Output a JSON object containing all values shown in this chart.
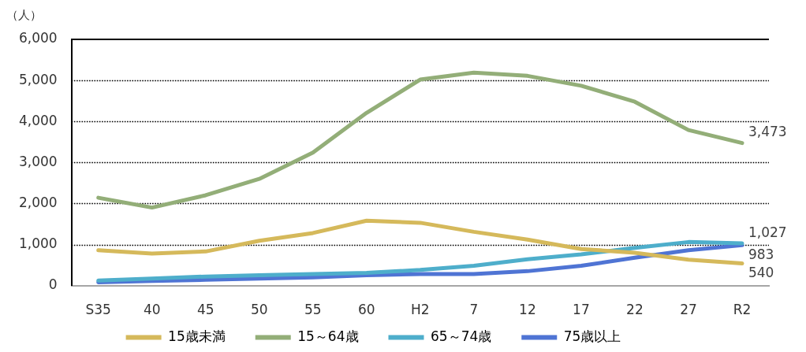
{
  "chart_data": {
    "type": "line",
    "ylabel": "（人）",
    "categories": [
      "S35",
      "40",
      "45",
      "50",
      "55",
      "60",
      "H2",
      "7",
      "12",
      "17",
      "22",
      "27",
      "R2"
    ],
    "series": [
      {
        "name": "15歳未満",
        "color": "#d5b95b",
        "values": [
          860,
          780,
          830,
          1090,
          1280,
          1580,
          1530,
          1310,
          1120,
          890,
          800,
          630,
          540
        ],
        "value_labels": [
          null,
          null,
          null,
          null,
          null,
          null,
          null,
          null,
          null,
          null,
          null,
          null,
          "540"
        ]
      },
      {
        "name": "15～64歳",
        "color": "#93ae78",
        "values": [
          2140,
          1900,
          2200,
          2600,
          3240,
          4210,
          5020,
          5190,
          5110,
          4870,
          4480,
          3790,
          3473
        ],
        "value_labels": [
          null,
          null,
          null,
          null,
          null,
          null,
          null,
          null,
          null,
          null,
          null,
          null,
          "3,473"
        ]
      },
      {
        "name": "65～74歳",
        "color": "#4eaecb",
        "values": [
          120,
          170,
          220,
          250,
          280,
          310,
          380,
          480,
          640,
          760,
          920,
          1060,
          1027
        ],
        "value_labels": [
          null,
          null,
          null,
          null,
          null,
          null,
          null,
          null,
          null,
          null,
          null,
          null,
          "1,027"
        ]
      },
      {
        "name": "75歳以上",
        "color": "#4f74d4",
        "values": [
          80,
          110,
          140,
          170,
          200,
          250,
          280,
          280,
          350,
          480,
          680,
          860,
          983
        ],
        "value_labels": [
          null,
          null,
          null,
          null,
          null,
          null,
          null,
          null,
          null,
          null,
          null,
          null,
          "983"
        ]
      }
    ],
    "ylim": [
      0,
      6000
    ],
    "yticks": [
      {
        "value": 0,
        "label": "0"
      },
      {
        "value": 1000,
        "label": "1,000"
      },
      {
        "value": 2000,
        "label": "2,000"
      },
      {
        "value": 3000,
        "label": "3,000"
      },
      {
        "value": 4000,
        "label": "4,000"
      },
      {
        "value": 5000,
        "label": "5,000"
      },
      {
        "value": 6000,
        "label": "6,000"
      }
    ],
    "grid": "y",
    "legend": "bottom",
    "line_style": "solid"
  }
}
